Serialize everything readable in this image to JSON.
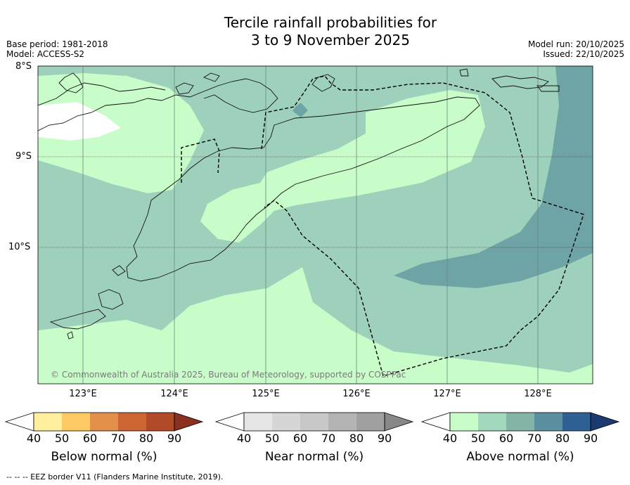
{
  "title_line1": "Tercile rainfall probabilities for",
  "title_line2": "3 to 9 November 2025",
  "base_period": "Base period: 1981-2018",
  "model": "Model: ACCESS-S2",
  "model_run": "Model run: 20/10/2025",
  "issued": "Issued: 22/10/2025",
  "lat_labels": [
    "8°S",
    "9°S",
    "10°S"
  ],
  "lon_labels": [
    "123°E",
    "124°E",
    "125°E",
    "126°E",
    "127°E",
    "128°E"
  ],
  "copyright": "© Commonwealth of Australia 2025, Bureau of Meteorology, supported by COSPPac",
  "footnote": "--  --  -- EEZ border V11 (Flanders Marine Institute, 2019).",
  "colorbars": [
    {
      "title": "Below normal (%)",
      "ticks": [
        "40",
        "50",
        "60",
        "70",
        "80",
        "90"
      ],
      "colors": [
        "#ffffff",
        "#fff0a0",
        "#fdca65",
        "#e2904a",
        "#cc6434",
        "#b04a28",
        "#8a3020"
      ]
    },
    {
      "title": "Near normal (%)",
      "ticks": [
        "40",
        "50",
        "60",
        "70",
        "80",
        "90"
      ],
      "colors": [
        "#ffffff",
        "#e6e6e6",
        "#d6d6d6",
        "#c8c8c8",
        "#b4b4b4",
        "#a0a0a0",
        "#888888"
      ]
    },
    {
      "title": "Above normal (%)",
      "ticks": [
        "40",
        "50",
        "60",
        "70",
        "80",
        "90"
      ],
      "colors": [
        "#ffffff",
        "#c8fcc8",
        "#a2d8bc",
        "#84b4a8",
        "#5a90a0",
        "#2e6094",
        "#1a3a70"
      ]
    }
  ]
}
